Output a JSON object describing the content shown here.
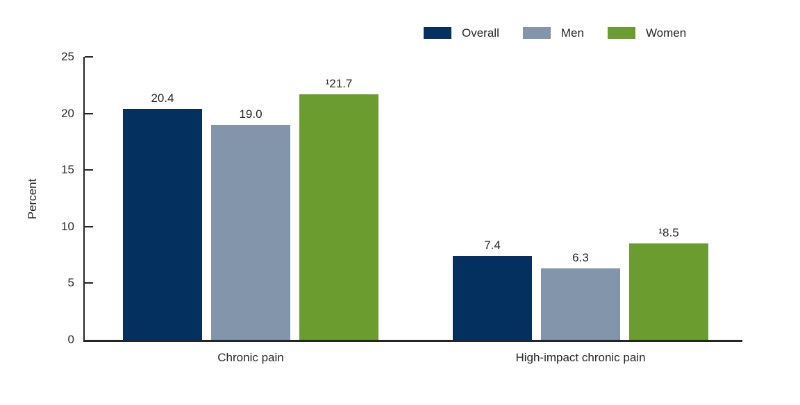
{
  "chart_data": {
    "type": "bar",
    "title": "",
    "xlabel": "",
    "ylabel": "Percent",
    "ylim": [
      0,
      25
    ],
    "yticks": [
      0,
      5,
      10,
      15,
      20,
      25
    ],
    "grid": false,
    "legend_position": "top-right",
    "categories": [
      "Chronic pain",
      "High-impact chronic pain"
    ],
    "series": [
      {
        "name": "Overall",
        "color": "#04305f",
        "values": [
          20.4,
          7.4
        ],
        "labels": [
          "20.4",
          "7.4"
        ]
      },
      {
        "name": "Men",
        "color": "#8295ab",
        "values": [
          19.0,
          6.3
        ],
        "labels": [
          "19.0",
          "6.3"
        ]
      },
      {
        "name": "Women",
        "color": "#6a9c30",
        "values": [
          21.7,
          8.5
        ],
        "labels": [
          "¹21.7",
          "¹8.5"
        ]
      }
    ],
    "footnote_marker": "1",
    "axis_color": "#262626",
    "text_color": "#262626"
  }
}
